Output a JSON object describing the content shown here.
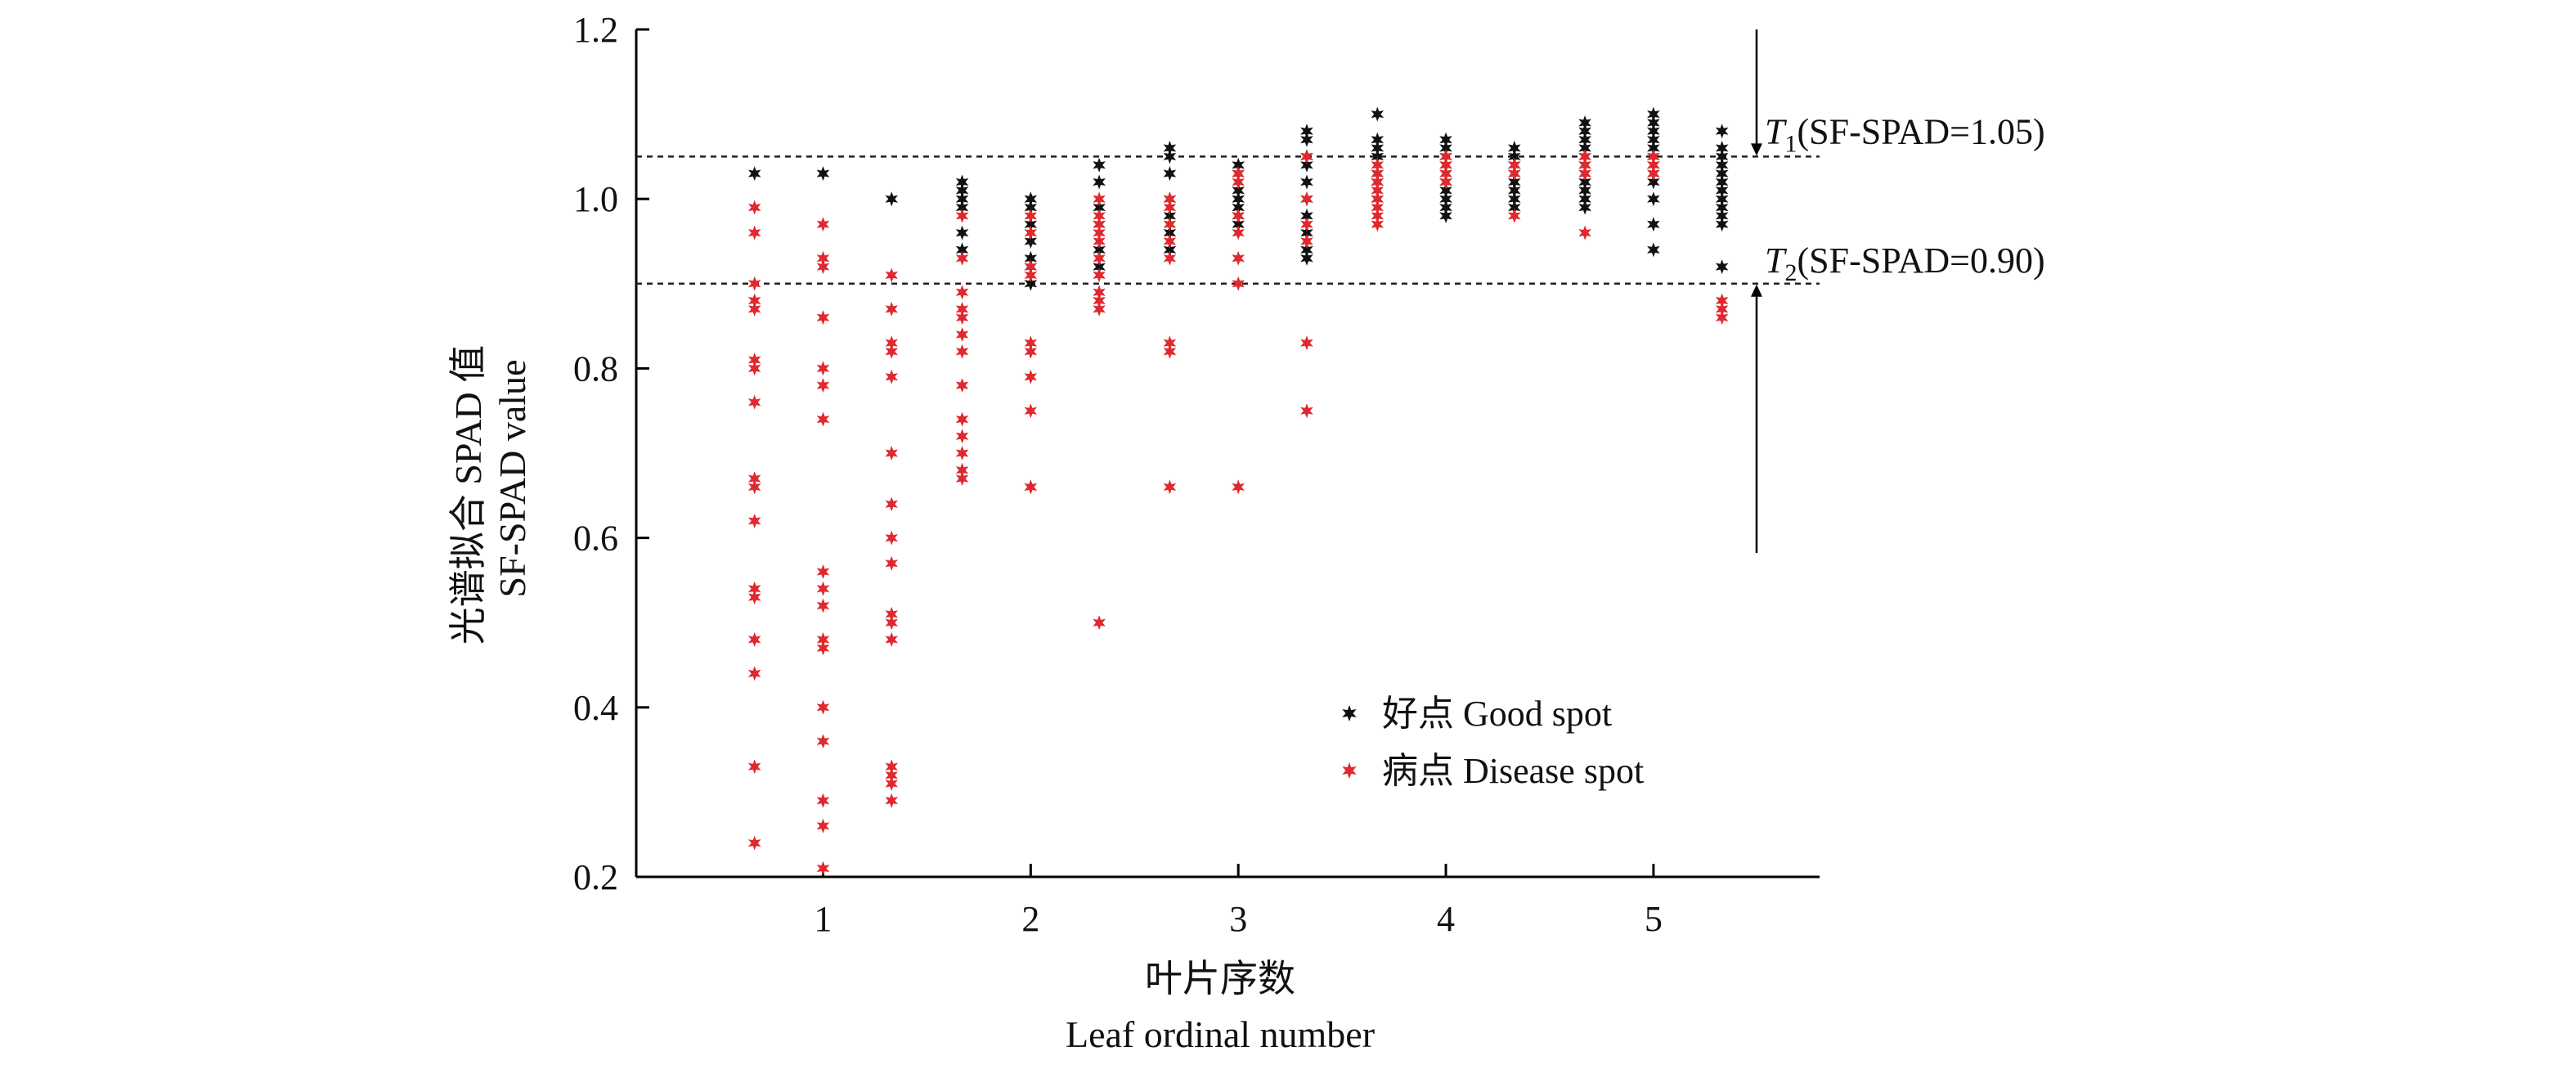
{
  "chart_data": {
    "type": "scatter",
    "title": "",
    "xlabel": [
      "叶片序数",
      "Leaf ordinal number"
    ],
    "ylabel": [
      "光谱拟合 SPAD 值",
      "SF-SPAD value"
    ],
    "xlim": [
      0.1,
      5.8
    ],
    "ylim": [
      0.2,
      1.2
    ],
    "x_ticks": [
      "1",
      "2",
      "3",
      "4",
      "5"
    ],
    "y_ticks": [
      "0.2",
      "0.4",
      "0.6",
      "0.8",
      "1.0",
      "1.2"
    ],
    "grid": false,
    "legend_position": "center-right",
    "thresholds": [
      {
        "prefix": "T",
        "sub": "1",
        "text": "(SF-SPAD=1.05)",
        "y": 1.05
      },
      {
        "prefix": "T",
        "sub": "2",
        "text": "(SF-SPAD=0.90)",
        "y": 0.9
      }
    ],
    "series": [
      {
        "name": "好点 Good spot",
        "color": "#111111",
        "points": [
          [
            0.67,
            1.03
          ],
          [
            1.0,
            1.03
          ],
          [
            1.33,
            1.0
          ],
          [
            1.67,
            1.02
          ],
          [
            1.67,
            1.01
          ],
          [
            1.67,
            1.0
          ],
          [
            1.67,
            0.99
          ],
          [
            1.67,
            0.96
          ],
          [
            1.67,
            0.94
          ],
          [
            2.0,
            1.0
          ],
          [
            2.0,
            0.99
          ],
          [
            2.0,
            0.97
          ],
          [
            2.0,
            0.95
          ],
          [
            2.0,
            0.93
          ],
          [
            2.0,
            0.92
          ],
          [
            2.0,
            0.9
          ],
          [
            2.33,
            1.04
          ],
          [
            2.33,
            1.02
          ],
          [
            2.33,
            0.99
          ],
          [
            2.33,
            0.97
          ],
          [
            2.33,
            0.94
          ],
          [
            2.33,
            0.92
          ],
          [
            2.67,
            1.06
          ],
          [
            2.67,
            1.05
          ],
          [
            2.67,
            1.03
          ],
          [
            2.67,
            1.0
          ],
          [
            2.67,
            0.98
          ],
          [
            2.67,
            0.96
          ],
          [
            2.67,
            0.94
          ],
          [
            3.0,
            1.04
          ],
          [
            3.0,
            1.03
          ],
          [
            3.0,
            1.01
          ],
          [
            3.0,
            1.0
          ],
          [
            3.0,
            0.99
          ],
          [
            3.0,
            0.98
          ],
          [
            3.0,
            0.97
          ],
          [
            3.33,
            1.08
          ],
          [
            3.33,
            1.07
          ],
          [
            3.33,
            1.05
          ],
          [
            3.33,
            1.04
          ],
          [
            3.33,
            1.02
          ],
          [
            3.33,
            1.0
          ],
          [
            3.33,
            0.98
          ],
          [
            3.33,
            0.96
          ],
          [
            3.33,
            0.94
          ],
          [
            3.33,
            0.93
          ],
          [
            3.67,
            1.1
          ],
          [
            3.67,
            1.07
          ],
          [
            3.67,
            1.06
          ],
          [
            3.67,
            1.05
          ],
          [
            3.67,
            1.03
          ],
          [
            3.67,
            1.02
          ],
          [
            3.67,
            1.0
          ],
          [
            4.0,
            1.07
          ],
          [
            4.0,
            1.06
          ],
          [
            4.0,
            1.05
          ],
          [
            4.0,
            1.04
          ],
          [
            4.0,
            1.03
          ],
          [
            4.0,
            1.02
          ],
          [
            4.0,
            1.01
          ],
          [
            4.0,
            1.0
          ],
          [
            4.0,
            0.99
          ],
          [
            4.0,
            0.98
          ],
          [
            4.33,
            1.06
          ],
          [
            4.33,
            1.05
          ],
          [
            4.33,
            1.04
          ],
          [
            4.33,
            1.03
          ],
          [
            4.33,
            1.02
          ],
          [
            4.33,
            1.01
          ],
          [
            4.33,
            1.0
          ],
          [
            4.33,
            0.99
          ],
          [
            4.67,
            1.09
          ],
          [
            4.67,
            1.08
          ],
          [
            4.67,
            1.07
          ],
          [
            4.67,
            1.06
          ],
          [
            4.67,
            1.05
          ],
          [
            4.67,
            1.04
          ],
          [
            4.67,
            1.03
          ],
          [
            4.67,
            1.02
          ],
          [
            4.67,
            1.01
          ],
          [
            4.67,
            1.0
          ],
          [
            4.67,
            0.99
          ],
          [
            5.0,
            1.1
          ],
          [
            5.0,
            1.09
          ],
          [
            5.0,
            1.08
          ],
          [
            5.0,
            1.07
          ],
          [
            5.0,
            1.06
          ],
          [
            5.0,
            1.05
          ],
          [
            5.0,
            1.04
          ],
          [
            5.0,
            1.03
          ],
          [
            5.0,
            1.02
          ],
          [
            5.0,
            1.0
          ],
          [
            5.0,
            0.97
          ],
          [
            5.0,
            0.94
          ],
          [
            5.33,
            1.08
          ],
          [
            5.33,
            1.06
          ],
          [
            5.33,
            1.05
          ],
          [
            5.33,
            1.04
          ],
          [
            5.33,
            1.03
          ],
          [
            5.33,
            1.02
          ],
          [
            5.33,
            1.01
          ],
          [
            5.33,
            1.0
          ],
          [
            5.33,
            0.99
          ],
          [
            5.33,
            0.98
          ],
          [
            5.33,
            0.97
          ],
          [
            5.33,
            0.92
          ]
        ]
      },
      {
        "name": "病点 Disease spot",
        "color": "#e0282e",
        "points": [
          [
            0.67,
            0.99
          ],
          [
            0.67,
            0.96
          ],
          [
            0.67,
            0.9
          ],
          [
            0.67,
            0.88
          ],
          [
            0.67,
            0.87
          ],
          [
            0.67,
            0.81
          ],
          [
            0.67,
            0.8
          ],
          [
            0.67,
            0.76
          ],
          [
            0.67,
            0.67
          ],
          [
            0.67,
            0.66
          ],
          [
            0.67,
            0.62
          ],
          [
            0.67,
            0.54
          ],
          [
            0.67,
            0.53
          ],
          [
            0.67,
            0.48
          ],
          [
            0.67,
            0.44
          ],
          [
            0.67,
            0.33
          ],
          [
            0.67,
            0.24
          ],
          [
            1.0,
            0.97
          ],
          [
            1.0,
            0.93
          ],
          [
            1.0,
            0.92
          ],
          [
            1.0,
            0.86
          ],
          [
            1.0,
            0.8
          ],
          [
            1.0,
            0.78
          ],
          [
            1.0,
            0.74
          ],
          [
            1.0,
            0.56
          ],
          [
            1.0,
            0.54
          ],
          [
            1.0,
            0.52
          ],
          [
            1.0,
            0.48
          ],
          [
            1.0,
            0.47
          ],
          [
            1.0,
            0.4
          ],
          [
            1.0,
            0.36
          ],
          [
            1.0,
            0.29
          ],
          [
            1.0,
            0.26
          ],
          [
            1.0,
            0.21
          ],
          [
            1.33,
            0.91
          ],
          [
            1.33,
            0.87
          ],
          [
            1.33,
            0.83
          ],
          [
            1.33,
            0.82
          ],
          [
            1.33,
            0.79
          ],
          [
            1.33,
            0.7
          ],
          [
            1.33,
            0.64
          ],
          [
            1.33,
            0.6
          ],
          [
            1.33,
            0.57
          ],
          [
            1.33,
            0.51
          ],
          [
            1.33,
            0.5
          ],
          [
            1.33,
            0.48
          ],
          [
            1.33,
            0.33
          ],
          [
            1.33,
            0.32
          ],
          [
            1.33,
            0.31
          ],
          [
            1.33,
            0.29
          ],
          [
            1.67,
            0.98
          ],
          [
            1.67,
            0.93
          ],
          [
            1.67,
            0.89
          ],
          [
            1.67,
            0.87
          ],
          [
            1.67,
            0.86
          ],
          [
            1.67,
            0.84
          ],
          [
            1.67,
            0.82
          ],
          [
            1.67,
            0.78
          ],
          [
            1.67,
            0.74
          ],
          [
            1.67,
            0.72
          ],
          [
            1.67,
            0.7
          ],
          [
            1.67,
            0.68
          ],
          [
            1.67,
            0.67
          ],
          [
            2.0,
            0.98
          ],
          [
            2.0,
            0.96
          ],
          [
            2.0,
            0.92
          ],
          [
            2.0,
            0.91
          ],
          [
            2.0,
            0.83
          ],
          [
            2.0,
            0.82
          ],
          [
            2.0,
            0.79
          ],
          [
            2.0,
            0.75
          ],
          [
            2.0,
            0.66
          ],
          [
            2.0,
            0.66
          ],
          [
            2.33,
            1.0
          ],
          [
            2.33,
            0.98
          ],
          [
            2.33,
            0.97
          ],
          [
            2.33,
            0.96
          ],
          [
            2.33,
            0.95
          ],
          [
            2.33,
            0.93
          ],
          [
            2.33,
            0.91
          ],
          [
            2.33,
            0.89
          ],
          [
            2.33,
            0.88
          ],
          [
            2.33,
            0.87
          ],
          [
            2.33,
            0.5
          ],
          [
            2.67,
            1.0
          ],
          [
            2.67,
            0.99
          ],
          [
            2.67,
            0.97
          ],
          [
            2.67,
            0.95
          ],
          [
            2.67,
            0.93
          ],
          [
            2.67,
            0.83
          ],
          [
            2.67,
            0.82
          ],
          [
            2.67,
            0.66
          ],
          [
            3.0,
            1.03
          ],
          [
            3.0,
            1.02
          ],
          [
            3.0,
            0.98
          ],
          [
            3.0,
            0.96
          ],
          [
            3.0,
            0.93
          ],
          [
            3.0,
            0.9
          ],
          [
            3.0,
            0.66
          ],
          [
            3.33,
            1.05
          ],
          [
            3.33,
            1.0
          ],
          [
            3.33,
            0.97
          ],
          [
            3.33,
            0.95
          ],
          [
            3.33,
            0.83
          ],
          [
            3.33,
            0.75
          ],
          [
            3.67,
            1.04
          ],
          [
            3.67,
            1.03
          ],
          [
            3.67,
            1.02
          ],
          [
            3.67,
            1.01
          ],
          [
            3.67,
            1.0
          ],
          [
            3.67,
            0.99
          ],
          [
            3.67,
            0.98
          ],
          [
            3.67,
            0.97
          ],
          [
            4.0,
            1.05
          ],
          [
            4.0,
            1.04
          ],
          [
            4.0,
            1.03
          ],
          [
            4.0,
            1.02
          ],
          [
            4.33,
            1.04
          ],
          [
            4.33,
            1.03
          ],
          [
            4.33,
            0.98
          ],
          [
            4.67,
            1.05
          ],
          [
            4.67,
            1.04
          ],
          [
            4.67,
            1.03
          ],
          [
            4.67,
            0.96
          ],
          [
            5.0,
            1.05
          ],
          [
            5.0,
            1.04
          ],
          [
            5.0,
            1.03
          ],
          [
            5.33,
            0.88
          ],
          [
            5.33,
            0.87
          ],
          [
            5.33,
            0.86
          ]
        ]
      }
    ]
  }
}
